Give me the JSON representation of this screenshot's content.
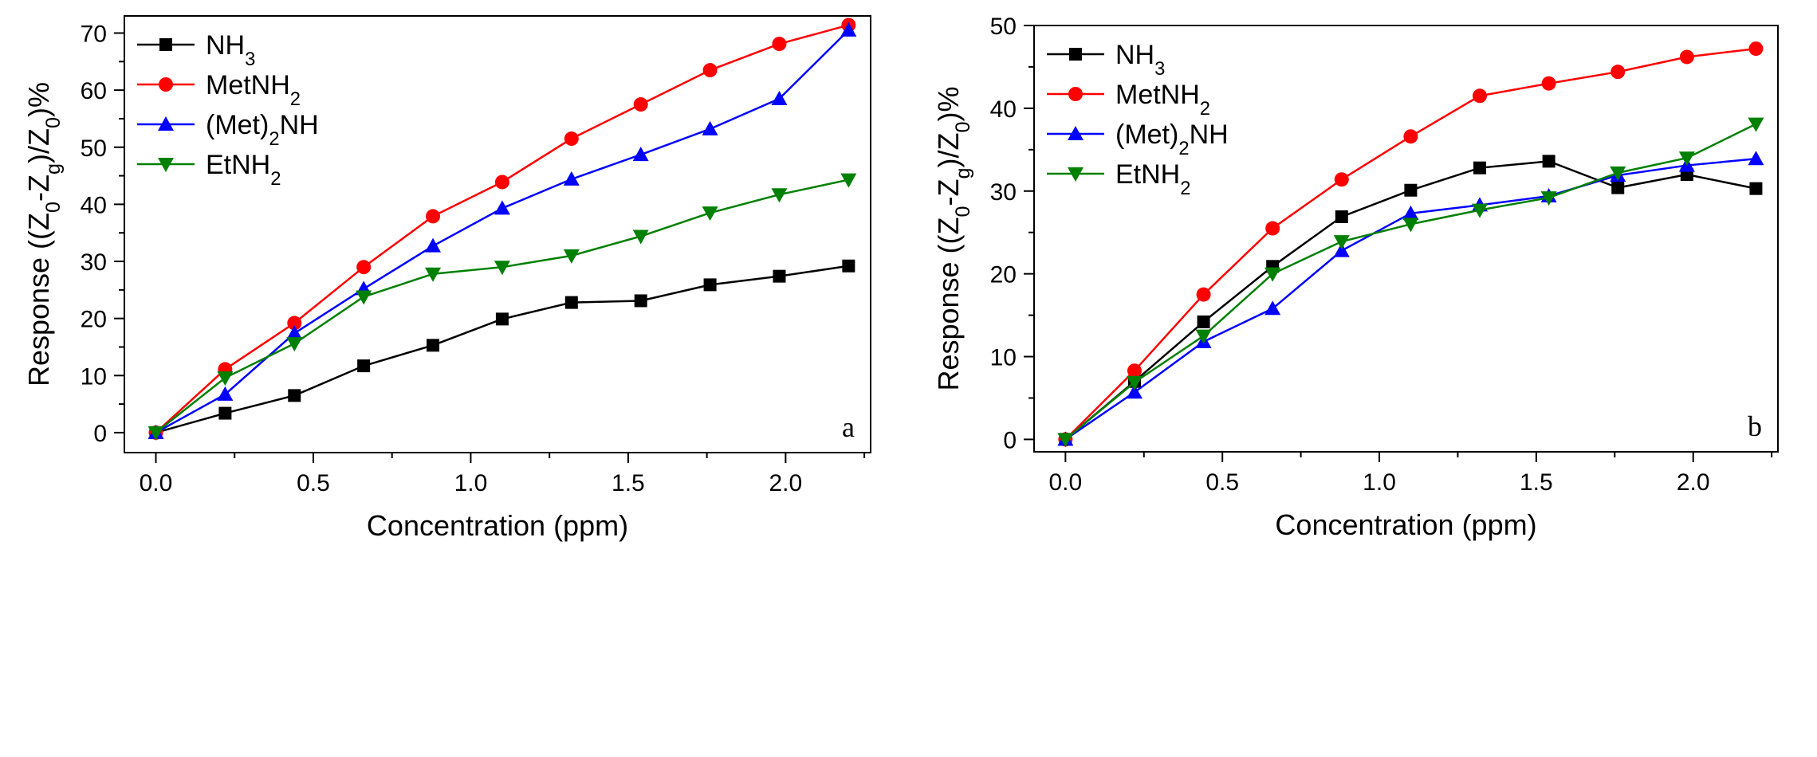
{
  "chart_data": [
    {
      "type": "line",
      "panel_label": "a",
      "xlabel": "Concentration (ppm)",
      "ylabel": "Response ((Z0-Zg)/Z0)%",
      "ylabel_parts": {
        "pre": "Response ((Z",
        "s1": "0",
        "m1": "-Z",
        "s2": "g",
        "m2": ")/Z",
        "s3": "0",
        "post": ")%"
      },
      "xlim": [
        -0.1,
        2.27
      ],
      "ylim": [
        -3.5,
        73
      ],
      "xticks": [
        0.0,
        0.5,
        1.0,
        1.5,
        2.0
      ],
      "xtick_labels": [
        "0.0",
        "0.5",
        "1.0",
        "1.5",
        "2.0"
      ],
      "yticks": [
        0,
        10,
        20,
        30,
        40,
        50,
        60,
        70
      ],
      "ytick_labels": [
        "0",
        "10",
        "20",
        "30",
        "40",
        "50",
        "60",
        "70"
      ],
      "legend_position": "top-left",
      "x": [
        0.0,
        0.22,
        0.44,
        0.66,
        0.88,
        1.1,
        1.32,
        1.54,
        1.76,
        1.98,
        2.2
      ],
      "series": [
        {
          "name": "NH3",
          "label_main": "NH",
          "label_sub": "3",
          "label_tail": "",
          "color": "#000000",
          "marker": "square",
          "values": [
            0,
            3.4,
            6.5,
            11.7,
            15.3,
            19.9,
            22.8,
            23.1,
            25.9,
            27.4,
            29.2
          ]
        },
        {
          "name": "MetNH2",
          "label_main": "MetNH",
          "label_sub": "2",
          "label_tail": "",
          "color": "#ff0000",
          "marker": "circle",
          "values": [
            0,
            11.1,
            19.2,
            29.0,
            37.9,
            43.9,
            51.5,
            57.5,
            63.5,
            68.1,
            71.4
          ]
        },
        {
          "name": "(Met)2NH",
          "label_main": "(Met)",
          "label_sub": "2",
          "label_tail": "NH",
          "color": "#0000ff",
          "marker": "triangle-up",
          "values": [
            0,
            6.7,
            17.4,
            25.2,
            32.7,
            39.3,
            44.4,
            48.7,
            53.2,
            58.5,
            70.5
          ]
        },
        {
          "name": "EtNH2",
          "label_main": "EtNH",
          "label_sub": "2",
          "label_tail": "",
          "color": "#008000",
          "marker": "triangle-down",
          "values": [
            0,
            9.6,
            15.6,
            23.8,
            27.8,
            29.0,
            31.0,
            34.4,
            38.5,
            41.7,
            44.3
          ]
        }
      ]
    },
    {
      "type": "line",
      "panel_label": "b",
      "xlabel": "Concentration (ppm)",
      "ylabel": "Response ((Z0-Zg)/Z0)%",
      "ylabel_parts": {
        "pre": "Response ((Z",
        "s1": "0",
        "m1": "-Z",
        "s2": "g",
        "m2": ")/Z",
        "s3": "0",
        "post": ")%"
      },
      "xlim": [
        -0.1,
        2.27
      ],
      "ylim": [
        -1.5,
        50
      ],
      "xticks": [
        0.0,
        0.5,
        1.0,
        1.5,
        2.0
      ],
      "xtick_labels": [
        "0.0",
        "0.5",
        "1.0",
        "1.5",
        "2.0"
      ],
      "yticks": [
        0,
        10,
        20,
        30,
        40,
        50
      ],
      "ytick_labels": [
        "0",
        "10",
        "20",
        "30",
        "40",
        "50"
      ],
      "legend_position": "top-left",
      "x": [
        0.0,
        0.22,
        0.44,
        0.66,
        0.88,
        1.1,
        1.32,
        1.54,
        1.76,
        1.98,
        2.2
      ],
      "series": [
        {
          "name": "NH3",
          "label_main": "NH",
          "label_sub": "3",
          "label_tail": "",
          "color": "#000000",
          "marker": "square",
          "values": [
            0,
            7.0,
            14.2,
            20.9,
            26.9,
            30.1,
            32.8,
            33.6,
            30.4,
            32.0,
            30.3
          ]
        },
        {
          "name": "MetNH2",
          "label_main": "MetNH",
          "label_sub": "2",
          "label_tail": "",
          "color": "#ff0000",
          "marker": "circle",
          "values": [
            0,
            8.3,
            17.5,
            25.5,
            31.4,
            36.6,
            41.5,
            43.0,
            44.4,
            46.2,
            47.2
          ]
        },
        {
          "name": "(Met)2NH",
          "label_main": "(Met)",
          "label_sub": "2",
          "label_tail": "NH",
          "color": "#0000ff",
          "marker": "triangle-up",
          "values": [
            0,
            5.7,
            11.8,
            15.8,
            22.8,
            27.3,
            28.3,
            29.4,
            31.9,
            33.1,
            33.9
          ]
        },
        {
          "name": "EtNH2",
          "label_main": "EtNH",
          "label_sub": "2",
          "label_tail": "",
          "color": "#008000",
          "marker": "triangle-down",
          "values": [
            0,
            6.9,
            12.5,
            20.0,
            23.9,
            26.0,
            27.7,
            29.2,
            32.2,
            34.0,
            38.1
          ]
        }
      ]
    }
  ]
}
